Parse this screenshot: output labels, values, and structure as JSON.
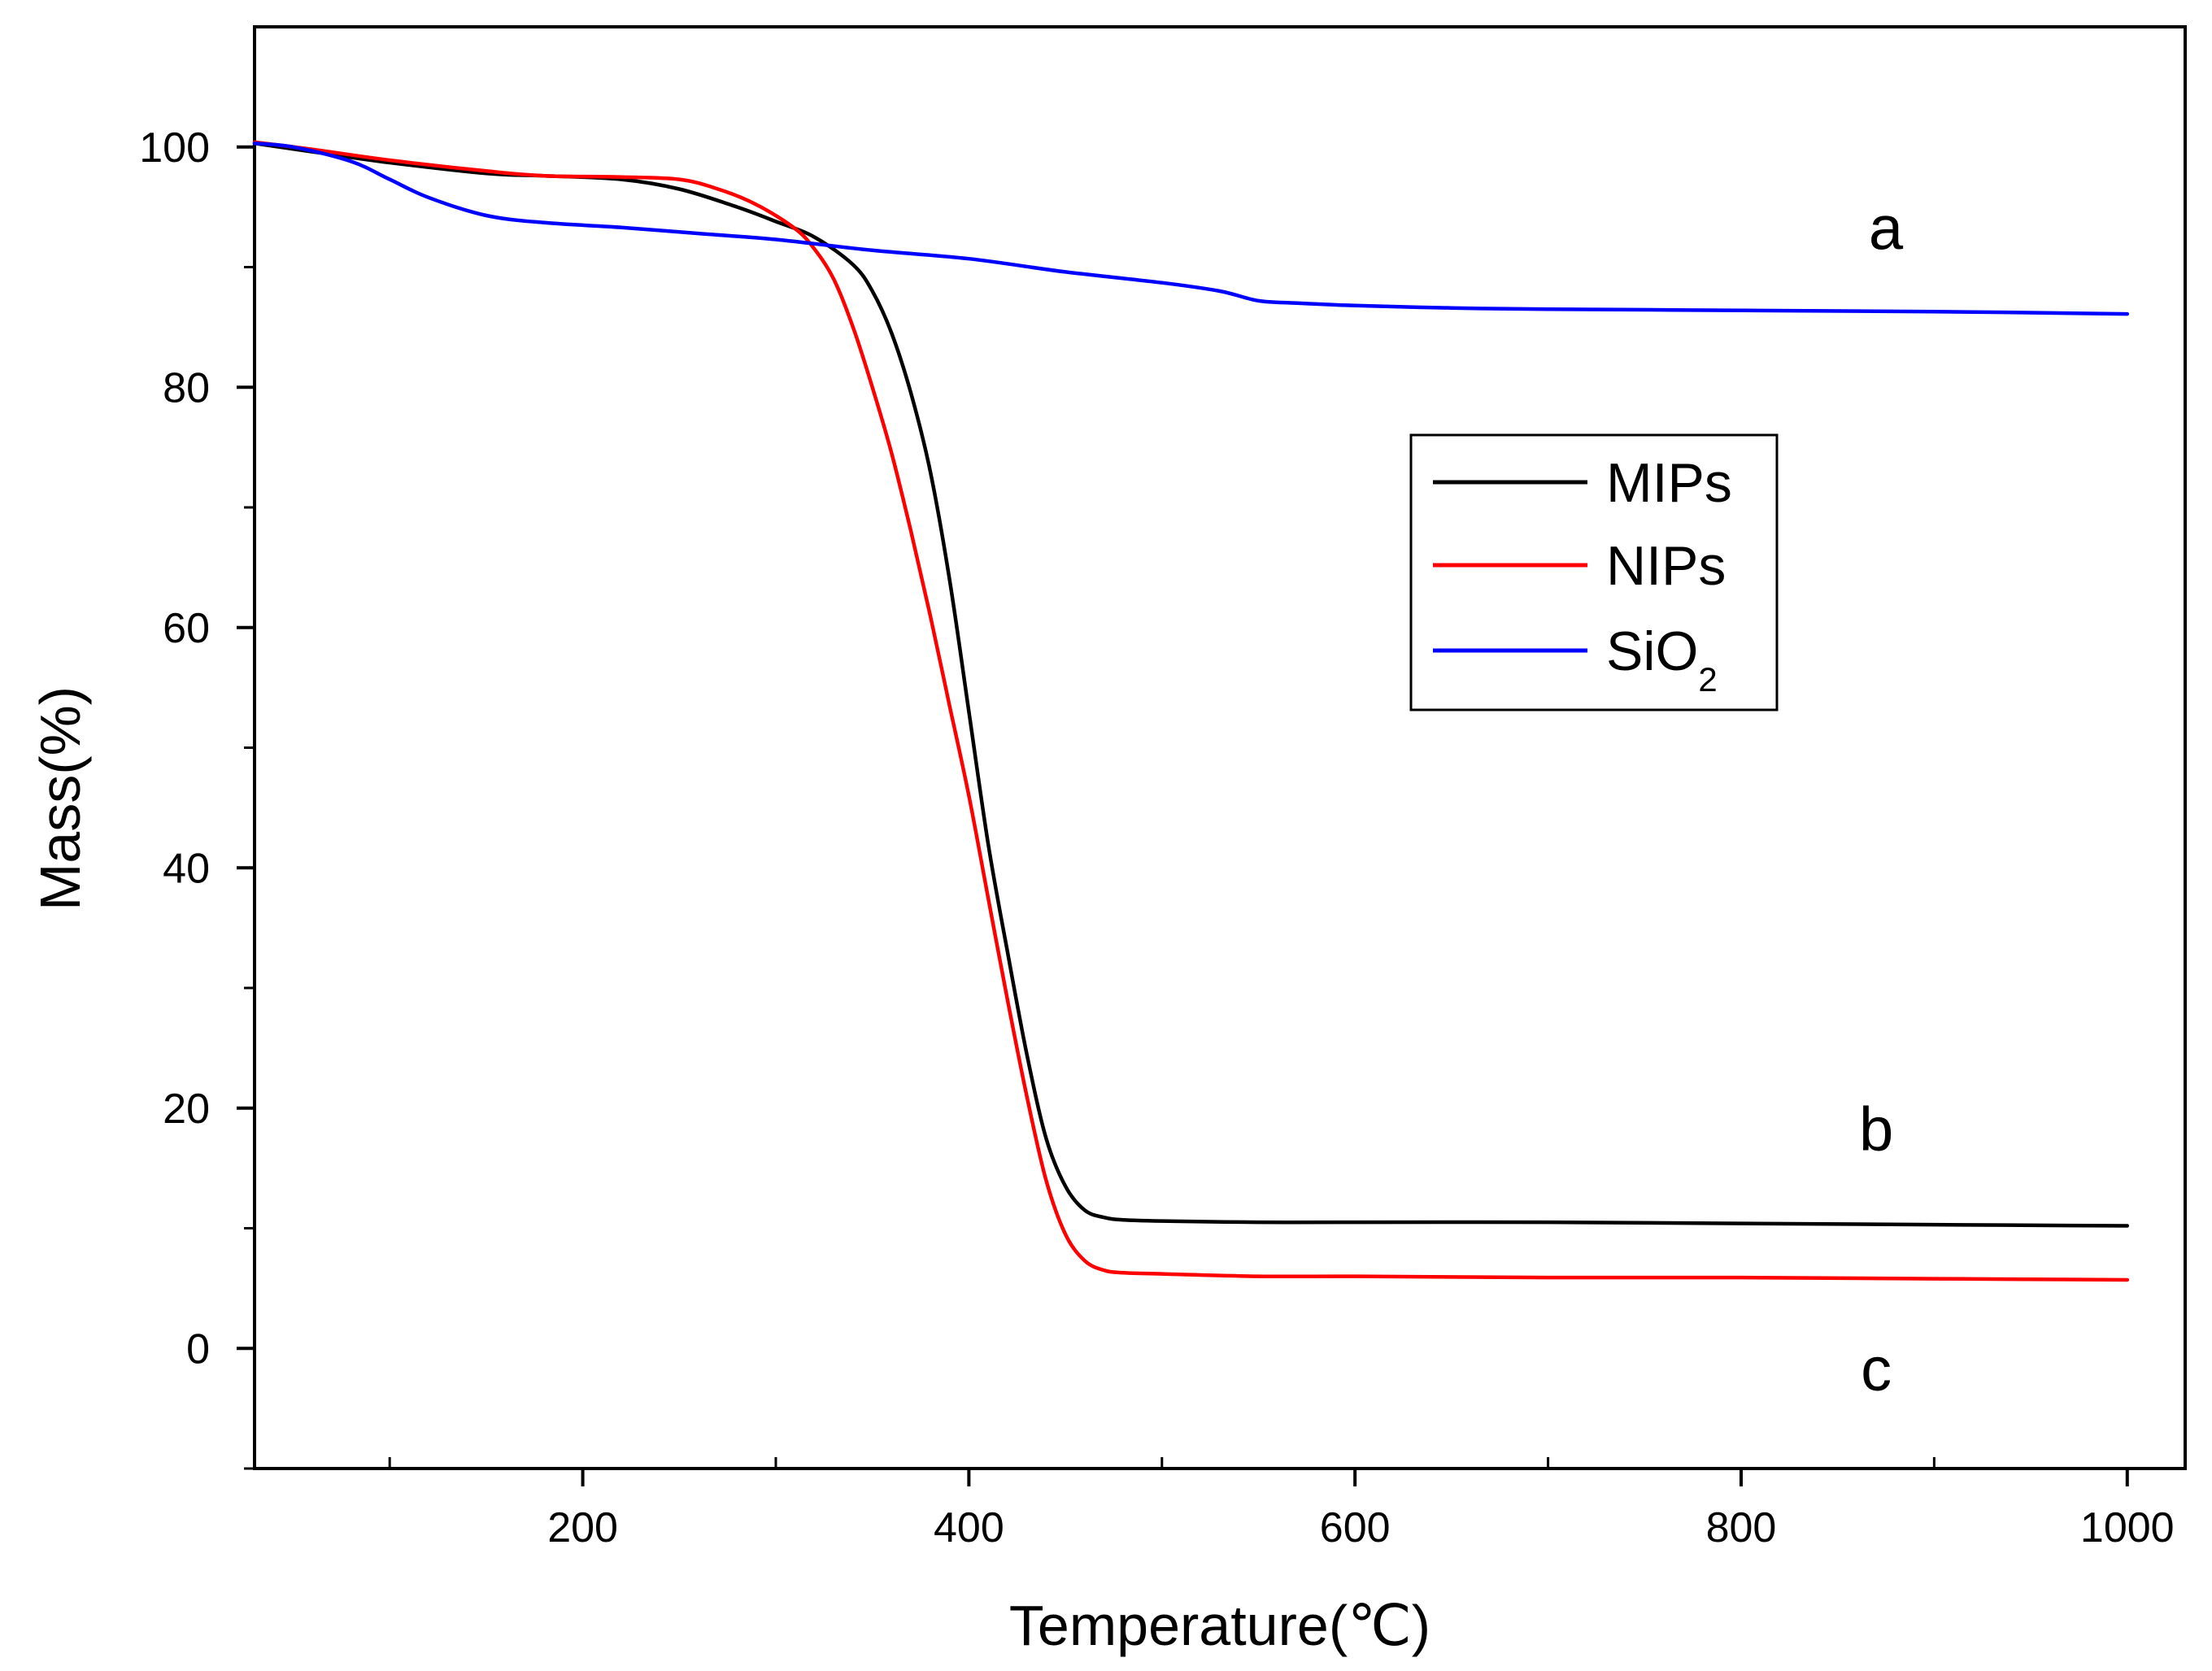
{
  "chart_data": {
    "type": "line",
    "title": "",
    "xlabel": "Temperature(℃)",
    "ylabel": "Mass(%)",
    "xlim": [
      30,
      1030
    ],
    "ylim": [
      -10,
      110
    ],
    "xticks": [
      200,
      400,
      600,
      800,
      1000
    ],
    "yticks": [
      0,
      20,
      40,
      60,
      80,
      100
    ],
    "x_minor_ticks": [
      100,
      300,
      500,
      700,
      900
    ],
    "y_minor_ticks": [
      -10,
      10,
      30,
      50,
      70,
      90
    ],
    "legend": {
      "position": "right-middle",
      "entries": [
        {
          "label": "MIPs",
          "color": "#000000"
        },
        {
          "label": "NIPs",
          "color": "#ff0000"
        },
        {
          "label": "SiO",
          "subscript": "2",
          "color": "#0000ff"
        }
      ]
    },
    "annotations": [
      {
        "text": "a",
        "x": 875,
        "y": 91.5
      },
      {
        "text": "b",
        "x": 870,
        "y": 16.5
      },
      {
        "text": "c",
        "x": 870,
        "y": -3.5
      }
    ],
    "series": [
      {
        "name": "MIPs",
        "color": "#000000",
        "x": [
          30,
          60,
          100,
          150,
          180,
          220,
          250,
          280,
          300,
          320,
          340,
          350,
          360,
          370,
          380,
          390,
          400,
          410,
          420,
          430,
          440,
          450,
          460,
          470,
          480,
          500,
          550,
          600,
          700,
          800,
          900,
          1000
        ],
        "y": [
          100.3,
          99.6,
          98.7,
          97.8,
          97.6,
          97.3,
          96.5,
          95.0,
          93.8,
          92.5,
          90.2,
          88.0,
          84.5,
          79.5,
          73.0,
          64.0,
          53.0,
          42.0,
          33.0,
          24.5,
          17.5,
          13.5,
          11.5,
          10.9,
          10.7,
          10.6,
          10.5,
          10.5,
          10.5,
          10.4,
          10.3,
          10.2
        ]
      },
      {
        "name": "NIPs",
        "color": "#ff0000",
        "x": [
          30,
          60,
          100,
          150,
          180,
          220,
          250,
          270,
          290,
          310,
          320,
          330,
          340,
          350,
          360,
          370,
          380,
          390,
          400,
          410,
          420,
          430,
          440,
          450,
          460,
          470,
          480,
          500,
          550,
          600,
          700,
          800,
          900,
          1000
        ],
        "y": [
          100.4,
          99.8,
          98.9,
          98.0,
          97.6,
          97.5,
          97.3,
          96.5,
          95.2,
          93.2,
          91.5,
          89.0,
          85.0,
          80.0,
          74.5,
          68.0,
          61.0,
          53.5,
          46.0,
          37.5,
          29.0,
          21.0,
          14.0,
          9.5,
          7.3,
          6.5,
          6.3,
          6.2,
          6.0,
          6.0,
          5.9,
          5.9,
          5.8,
          5.7
        ]
      },
      {
        "name": "SiO2",
        "color": "#0000ff",
        "x": [
          30,
          50,
          80,
          100,
          120,
          150,
          180,
          220,
          260,
          300,
          350,
          400,
          450,
          500,
          530,
          550,
          570,
          600,
          650,
          700,
          800,
          900,
          1000
        ],
        "y": [
          100.3,
          100.0,
          98.8,
          97.3,
          95.8,
          94.3,
          93.7,
          93.3,
          92.8,
          92.3,
          91.4,
          90.7,
          89.6,
          88.7,
          88.0,
          87.2,
          87.0,
          86.8,
          86.6,
          86.5,
          86.4,
          86.3,
          86.1
        ]
      }
    ]
  }
}
